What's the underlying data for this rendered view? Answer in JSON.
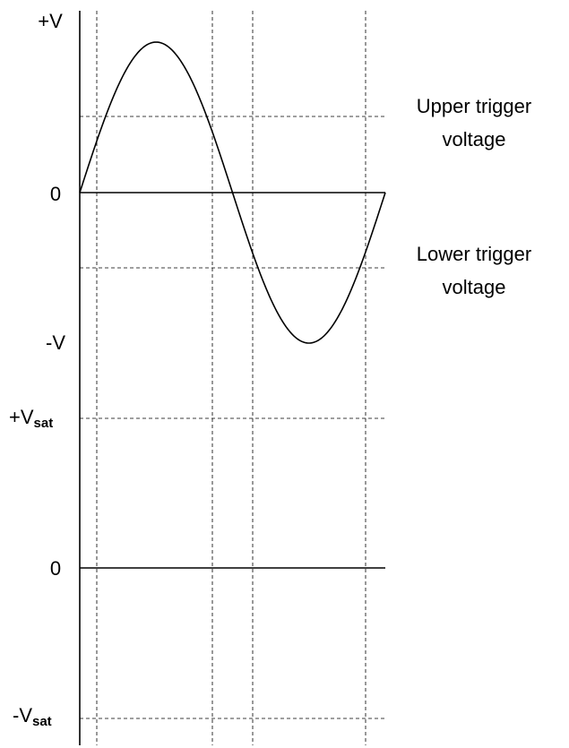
{
  "axis_labels": [
    {
      "main": "+V"
    },
    {
      "main": "0"
    },
    {
      "main": "-V"
    },
    {
      "main": "+V",
      "sub": "sat"
    },
    {
      "main": "0"
    },
    {
      "main": "-V",
      "sub": "sat"
    }
  ],
  "trigger_labels": [
    {
      "lines": [
        "Upper trigger",
        "voltage"
      ]
    },
    {
      "lines": [
        "Lower trigger",
        "voltage"
      ]
    }
  ]
}
